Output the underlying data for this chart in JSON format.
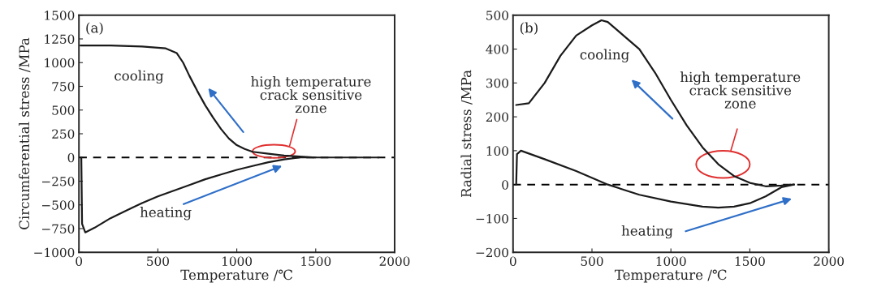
{
  "chart_data": [
    {
      "type": "line",
      "xlabel": "Temperature /℃",
      "ylabel": "Circumferential stress /MPa",
      "xlim": [
        0,
        2000
      ],
      "xticks": [
        0,
        500,
        1000,
        1500,
        2000
      ],
      "ylim": [
        -1000,
        1500
      ],
      "yticks": [
        -1000,
        -750,
        -500,
        -250,
        0,
        250,
        500,
        750,
        1000,
        1250,
        1500
      ],
      "grid": false,
      "legend": false,
      "line_style": "solid",
      "marker": "none",
      "ref_lines": [
        {
          "axis": "y",
          "value": 0,
          "color": "#000000",
          "line_style": "dashed"
        }
      ],
      "annotations": [
        "(a)",
        "cooling",
        "heating",
        "high temperature\ncrack sensitive\nzone"
      ],
      "series": [
        {
          "color": "#1a1a1a",
          "x": [
            10,
            200,
            400,
            550,
            620,
            660,
            700,
            750,
            800,
            850,
            900,
            950,
            1000,
            1050,
            1100,
            1200,
            1300,
            1400,
            1500,
            1900
          ],
          "values": [
            1180,
            1180,
            1170,
            1150,
            1100,
            1000,
            860,
            700,
            550,
            420,
            300,
            200,
            130,
            90,
            60,
            40,
            20,
            10,
            0,
            0
          ]
        },
        {
          "color": "#1a1a1a",
          "x": [
            15,
            20,
            40,
            100,
            200,
            300,
            400,
            500,
            600,
            700,
            800,
            900,
            1000,
            1100,
            1200,
            1300,
            1400,
            1500
          ],
          "values": [
            0,
            -700,
            -790,
            -740,
            -640,
            -560,
            -480,
            -410,
            -350,
            -290,
            -230,
            -180,
            -130,
            -90,
            -50,
            -20,
            0,
            0
          ]
        }
      ]
    },
    {
      "type": "line",
      "xlabel": "Temperature /℃",
      "ylabel": "Radial stress /MPa",
      "xlim": [
        0,
        2000
      ],
      "xticks": [
        0,
        500,
        1000,
        1500,
        2000
      ],
      "ylim": [
        -200,
        500
      ],
      "yticks": [
        -200,
        -100,
        0,
        100,
        200,
        300,
        400,
        500
      ],
      "grid": false,
      "legend": false,
      "line_style": "solid",
      "marker": "none",
      "ref_lines": [
        {
          "axis": "y",
          "value": 0,
          "color": "#000000",
          "line_style": "dashed"
        }
      ],
      "annotations": [
        "(b)",
        "cooling",
        "heating",
        "high temperature\ncrack sensitive\nzone"
      ],
      "series": [
        {
          "color": "#1a1a1a",
          "x": [
            20,
            100,
            200,
            300,
            400,
            500,
            560,
            600,
            700,
            800,
            900,
            1000,
            1100,
            1200,
            1300,
            1400,
            1500,
            1600,
            1700,
            1780
          ],
          "values": [
            235,
            240,
            300,
            380,
            440,
            470,
            485,
            480,
            440,
            400,
            330,
            250,
            175,
            110,
            60,
            25,
            5,
            -5,
            -3,
            0
          ]
        },
        {
          "color": "#1a1a1a",
          "x": [
            20,
            25,
            50,
            200,
            400,
            600,
            800,
            1000,
            1200,
            1300,
            1400,
            1500,
            1600,
            1700,
            1780
          ],
          "values": [
            0,
            90,
            100,
            75,
            40,
            0,
            -30,
            -50,
            -65,
            -68,
            -65,
            -55,
            -35,
            -8,
            0
          ]
        }
      ]
    }
  ]
}
